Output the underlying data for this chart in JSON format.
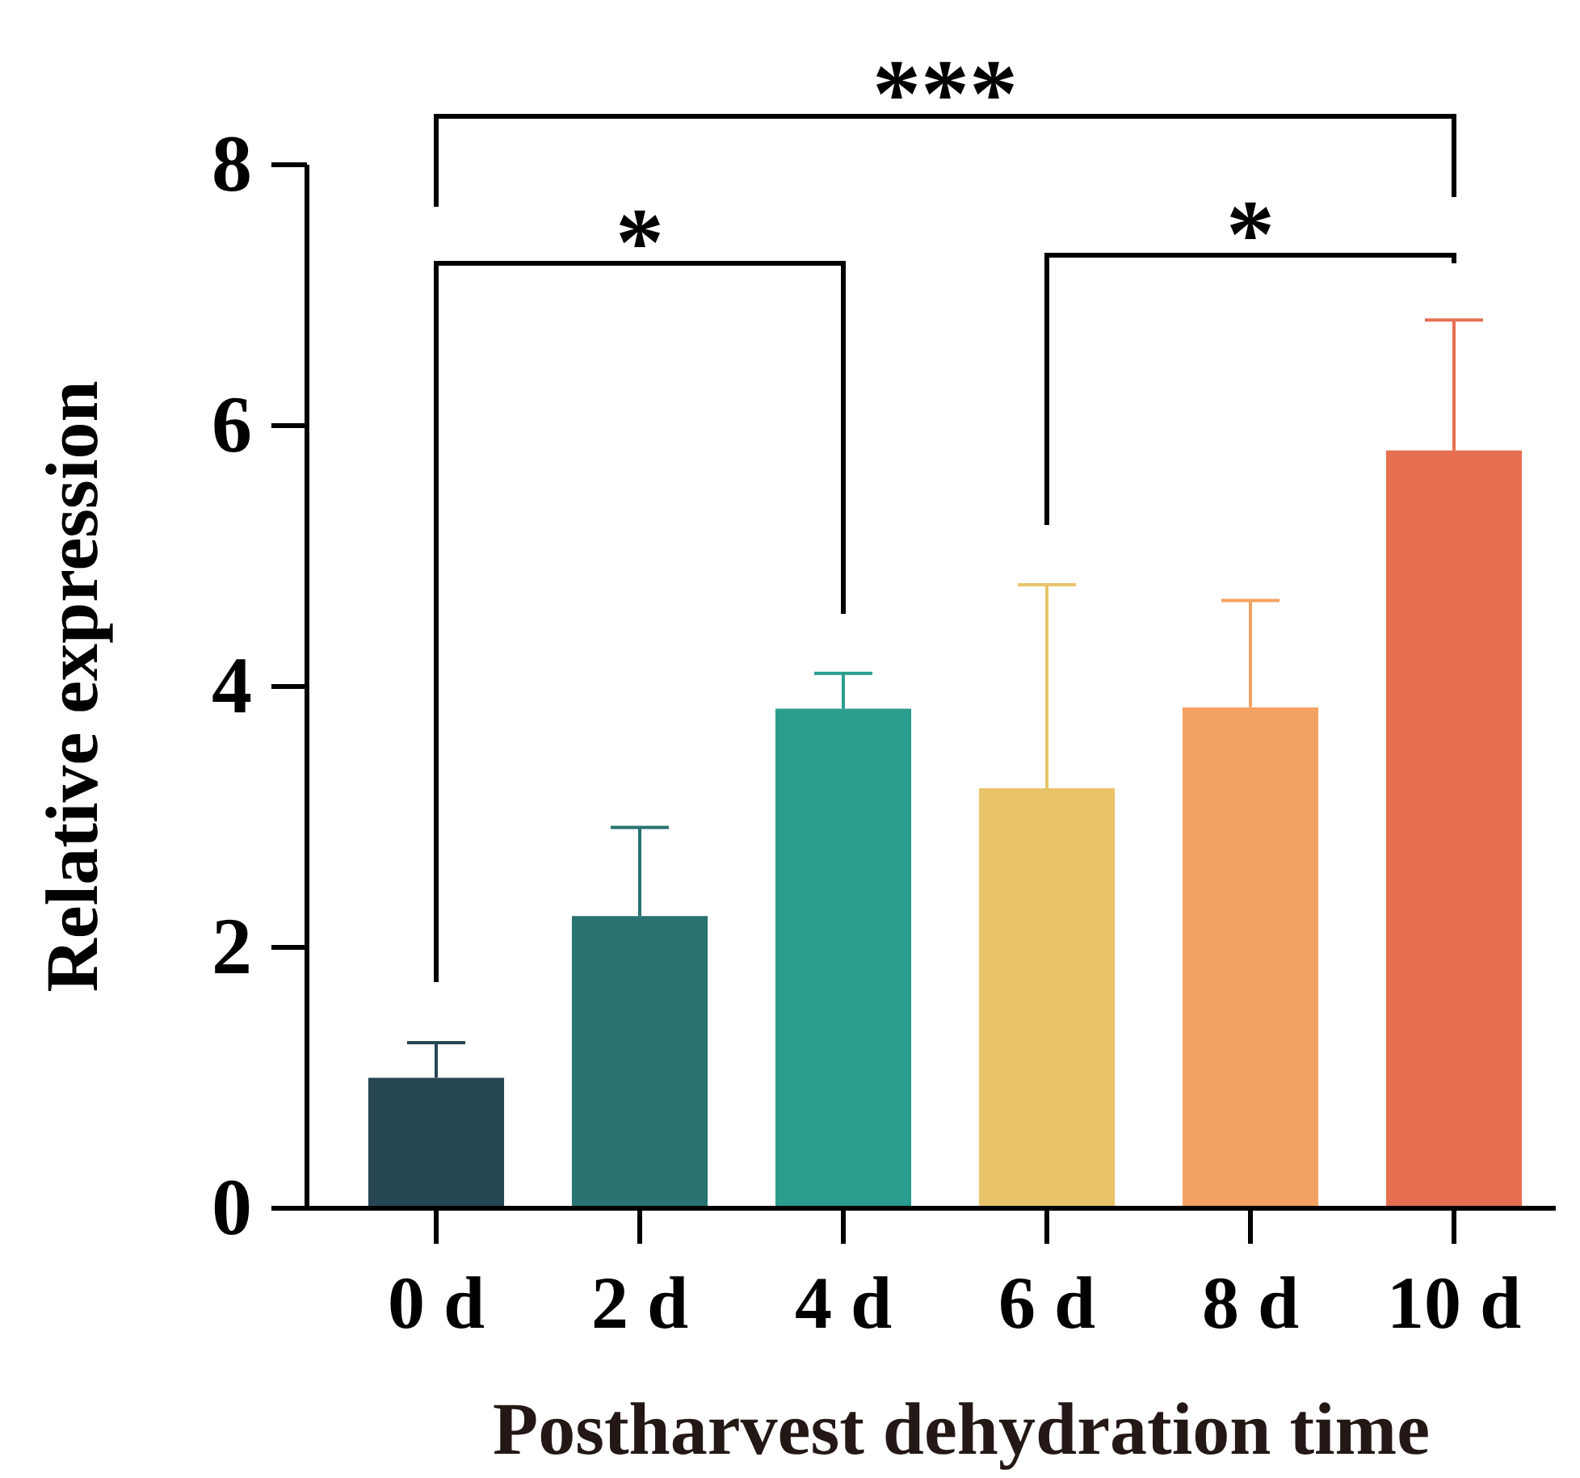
{
  "chart_data": {
    "type": "bar",
    "xlabel": "Postharvest dehydration time",
    "ylabel": "Relative expression",
    "categories": [
      "0 d",
      "2 d",
      "4 d",
      "6 d",
      "8 d",
      "10 d"
    ],
    "values": [
      1.0,
      2.24,
      3.83,
      3.22,
      3.84,
      5.81
    ],
    "colors": [
      "#264653",
      "#287271",
      "#2a9d8f",
      "#e9c46a",
      "#f4a261",
      "#e76f51"
    ],
    "errors": [
      [
        1.0,
        1.27
      ],
      [
        2.24,
        2.92
      ],
      [
        3.83,
        4.1
      ],
      [
        3.22,
        4.78
      ],
      [
        3.84,
        4.66
      ],
      [
        5.81,
        6.81
      ]
    ],
    "ylim": [
      0,
      8
    ],
    "yticks": [
      0,
      2,
      4,
      6,
      8
    ],
    "grid": false,
    "annotations": [
      "***",
      "*",
      "*"
    ]
  }
}
